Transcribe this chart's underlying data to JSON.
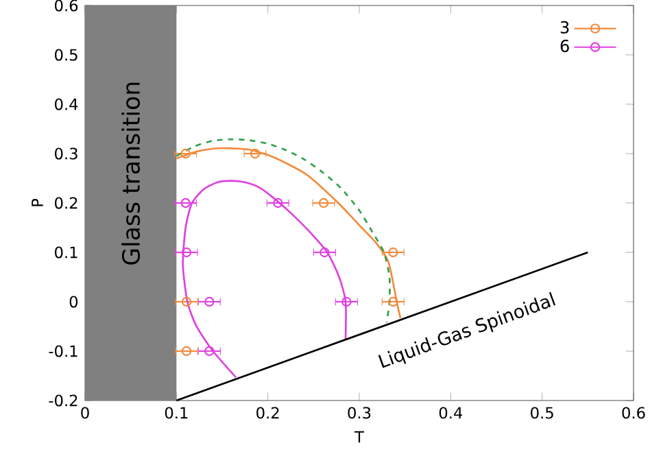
{
  "chart_data": {
    "type": "scatter",
    "xlabel": "T",
    "ylabel": "P",
    "xlim": [
      0,
      0.6
    ],
    "ylim": [
      -0.2,
      0.6
    ],
    "xticks": [
      0,
      0.1,
      0.2,
      0.3,
      0.4,
      0.5,
      0.6
    ],
    "yticks": [
      -0.2,
      -0.1,
      0,
      0.1,
      0.2,
      0.3,
      0.4,
      0.5,
      0.6
    ],
    "legend": "top right",
    "grid": false,
    "marker": "circle",
    "bands": [
      {
        "axis": "x",
        "from": 0,
        "to": 0.1,
        "label": "Glass transition",
        "color": "#808080"
      }
    ],
    "annotations": [
      "Liquid-Gas Spinoidal"
    ],
    "series": [
      {
        "name": "3",
        "color": "#f28a3c",
        "x": [
          0.11,
          0.186,
          0.261,
          0.337,
          0.337,
          0.111,
          0.111
        ],
        "values": [
          0.3,
          0.3,
          0.2,
          0.1,
          0,
          0,
          -0.1
        ],
        "xerrors": [
          0.012,
          0.012,
          0.012,
          0.012,
          0.012,
          0.012,
          0.012
        ]
      },
      {
        "name": "6",
        "color": "#e040e0",
        "x": [
          0.11,
          0.211,
          0.111,
          0.262,
          0.136,
          0.286,
          0.136
        ],
        "values": [
          0.2,
          0.2,
          0.1,
          0.1,
          0,
          0,
          -0.1
        ],
        "xerrors": [
          0.012,
          0.012,
          0.012,
          0.012,
          0.012,
          0.012,
          0.012
        ]
      },
      {
        "type": "line",
        "marker": "none",
        "line_style": "solid",
        "color": "#f28a3c",
        "x": [
          0.1,
          0.12,
          0.14,
          0.157,
          0.18,
          0.207,
          0.242,
          0.277,
          0.3,
          0.318,
          0.332,
          0.341,
          0.345
        ],
        "values": [
          0.29,
          0.303,
          0.31,
          0.311,
          0.308,
          0.292,
          0.258,
          0.2,
          0.155,
          0.12,
          0.08,
          0.0,
          -0.033
        ]
      },
      {
        "type": "line",
        "marker": "none",
        "line_style": "dashed",
        "color": "#33a04a",
        "x": [
          0.1,
          0.12,
          0.14,
          0.16,
          0.18,
          0.2,
          0.22,
          0.24,
          0.26,
          0.28,
          0.3,
          0.315,
          0.327,
          0.333,
          0.333,
          0.33
        ],
        "values": [
          0.295,
          0.315,
          0.326,
          0.329,
          0.327,
          0.32,
          0.307,
          0.288,
          0.262,
          0.23,
          0.185,
          0.139,
          0.1,
          0.05,
          0.0,
          -0.042
        ]
      },
      {
        "type": "line",
        "marker": "none",
        "line_style": "solid",
        "color": "#e040e0",
        "x": [
          0.165,
          0.14,
          0.122,
          0.112,
          0.107,
          0.11,
          0.117,
          0.13,
          0.145,
          0.159,
          0.175,
          0.19,
          0.205,
          0.225,
          0.247,
          0.265,
          0.278,
          0.285,
          0.285
        ],
        "values": [
          -0.153,
          -0.1,
          -0.05,
          0,
          0.075,
          0.15,
          0.2,
          0.228,
          0.242,
          0.245,
          0.242,
          0.232,
          0.212,
          0.18,
          0.139,
          0.1,
          0.05,
          0,
          -0.075
        ]
      },
      {
        "type": "line",
        "marker": "none",
        "line_style": "solid",
        "color": "#000000",
        "x": [
          0.1,
          0.55
        ],
        "values": [
          -0.2,
          0.1
        ]
      }
    ]
  }
}
